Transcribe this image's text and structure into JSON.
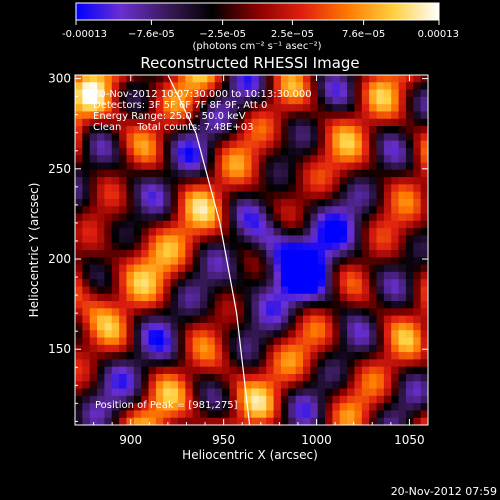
{
  "chart_data": {
    "type": "heatmap",
    "title": "Reconstructed RHESSI Image",
    "xlabel": "Heliocentric X (arcsec)",
    "ylabel": "Heliocentric Y (arcsec)",
    "xlim": [
      870,
      1060
    ],
    "ylim": [
      108,
      302
    ],
    "xticks": [
      900,
      950,
      1000,
      1050
    ],
    "yticks": [
      150,
      200,
      250,
      300
    ],
    "grid": false,
    "colorbar": {
      "min": -0.00013,
      "max": 0.00013,
      "ticks": [
        "-0.00013",
        "−7.6e-05",
        "−2.5e-05",
        "2.5e−05",
        "7.6e−05",
        "0.00013"
      ],
      "tick_values": [
        -0.00013,
        -7.6e-05,
        -2.5e-05,
        2.5e-05,
        7.6e-05,
        0.00013
      ],
      "units": "(photons cm⁻² s⁻¹ asec⁻²)",
      "colors": [
        "#0000ff",
        "#6a2fd0",
        "#3a1a5a",
        "#000000",
        "#8a0000",
        "#e02010",
        "#ff7a00",
        "#ffd040",
        "#ffffff"
      ]
    },
    "annotations": [
      "20-Nov-2012 10:07:30.000 to 10:13:30.000",
      "Detectors: 3F 5F 6F 7F 8F 9F, Att 0",
      "Energy Range: 25.0 - 50.0 keV",
      "Clean     Total counts: 7.48E+03"
    ],
    "peak_label": "Position of Peak = [981,275]",
    "limb_curve": [
      [
        920,
        302
      ],
      [
        935,
        270
      ],
      [
        948,
        220
      ],
      [
        957,
        170
      ],
      [
        964,
        108
      ]
    ],
    "footer_timestamp": "20-Nov-2012 07:59"
  }
}
